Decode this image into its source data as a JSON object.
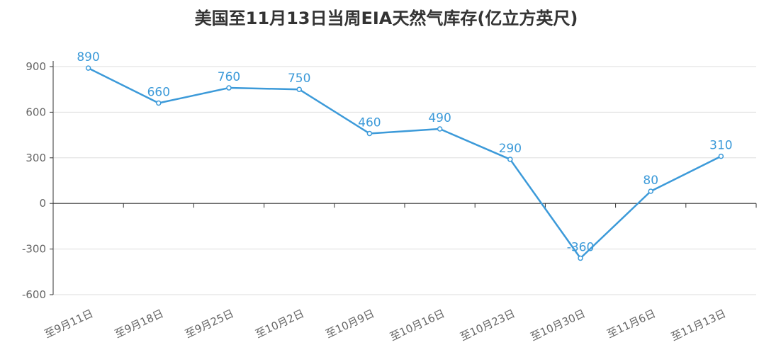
{
  "chart_data": {
    "type": "line",
    "title": "美国至11月13日当周EIA天然气库存(亿立方英尺)",
    "categories": [
      "至9月11日",
      "至9月18日",
      "至9月25日",
      "至10月2日",
      "至10月9日",
      "至10月16日",
      "至10月23日",
      "至10月30日",
      "至11月6日",
      "至11月13日"
    ],
    "series": [
      {
        "values": [
          890,
          660,
          760,
          750,
          460,
          490,
          290,
          -360,
          80,
          310
        ]
      }
    ],
    "data_labels": [
      "890",
      "660",
      "760",
      "750",
      "460",
      "490",
      "290",
      "-360",
      "80",
      "310"
    ],
    "yticks": [
      900,
      600,
      300,
      0,
      -300,
      -600
    ],
    "ytick_labels": [
      "900",
      "600",
      "300",
      "0",
      "-300",
      "-600"
    ],
    "ylim": [
      -600,
      900
    ],
    "grid": true,
    "legend": "none",
    "colors": {
      "line": "#3c9ad9",
      "label": "#3c9ad9",
      "grid": "#dddddd",
      "axis": "#333333",
      "text": "#666666"
    }
  }
}
